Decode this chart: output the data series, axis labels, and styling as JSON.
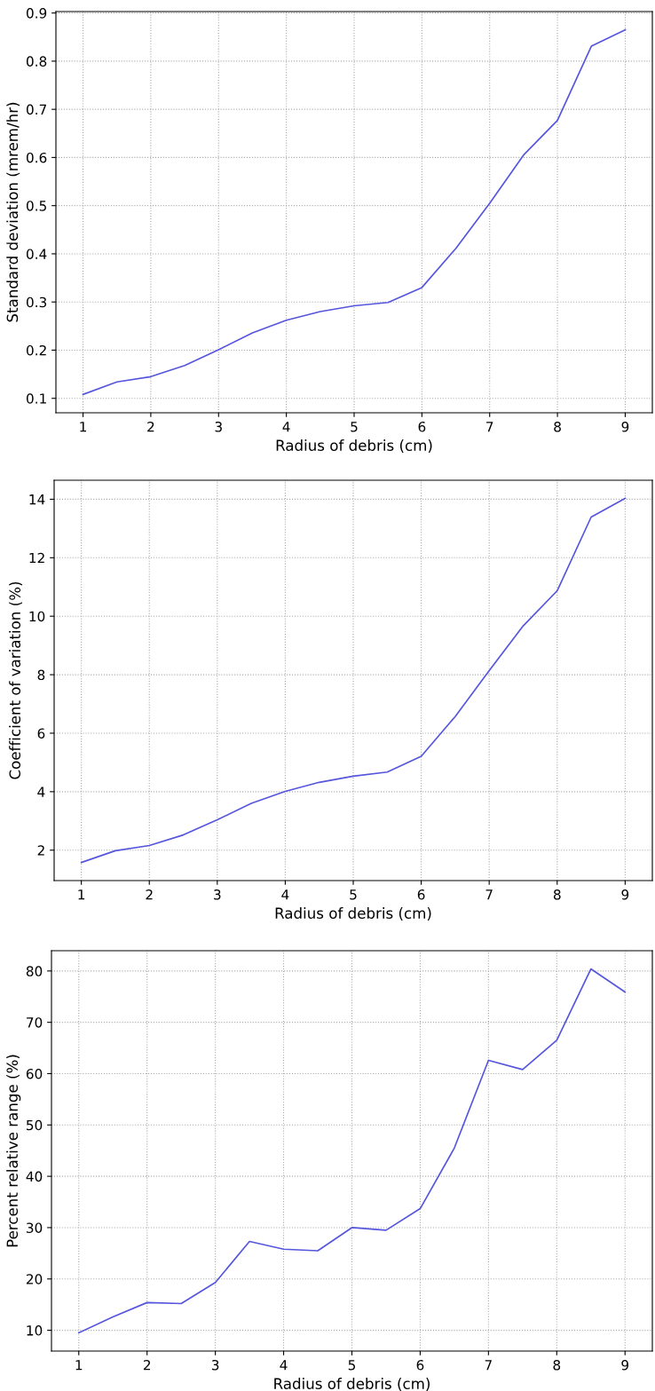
{
  "chart_data": [
    {
      "type": "line",
      "xlabel": "Radius of debris (cm)",
      "ylabel": "Standard deviation (mrem/hr)",
      "x": [
        1,
        1.5,
        2,
        2.5,
        3,
        3.5,
        4,
        4.5,
        5,
        5.5,
        6,
        6.5,
        7,
        7.5,
        8,
        8.5,
        9
      ],
      "series": [
        {
          "color": "#5555dd",
          "values": [
            0.108,
            0.134,
            0.145,
            0.168,
            0.201,
            0.236,
            0.262,
            0.28,
            0.292,
            0.299,
            0.33,
            0.411,
            0.505,
            0.605,
            0.677,
            0.831,
            0.865
          ]
        }
      ],
      "xlim": [
        0.6,
        9.4
      ],
      "xticks": [
        1,
        2,
        3,
        4,
        5,
        6,
        7,
        8,
        9
      ],
      "ylim": [
        0.07,
        0.903
      ],
      "yticks": [
        0.1,
        0.2,
        0.3,
        0.4,
        0.5,
        0.6,
        0.7,
        0.8,
        0.9
      ],
      "grid": true,
      "marker": "none",
      "line_style": "solid"
    },
    {
      "type": "line",
      "xlabel": "Radius of debris (cm)",
      "ylabel": "Coefficient of variation (%)",
      "x": [
        1,
        1.5,
        2,
        2.5,
        3,
        3.5,
        4,
        4.5,
        5,
        5.5,
        6,
        6.5,
        7,
        7.5,
        8,
        8.5,
        9
      ],
      "series": [
        {
          "color": "#5555dd",
          "values": [
            1.58,
            1.98,
            2.16,
            2.52,
            3.04,
            3.6,
            4.01,
            4.32,
            4.53,
            4.67,
            5.21,
            6.57,
            8.14,
            9.67,
            10.87,
            13.39,
            14.03
          ]
        }
      ],
      "xlim": [
        0.6,
        9.4
      ],
      "xticks": [
        1,
        2,
        3,
        4,
        5,
        6,
        7,
        8,
        9
      ],
      "ylim": [
        0.96,
        14.65
      ],
      "yticks": [
        2,
        4,
        6,
        8,
        10,
        12,
        14
      ],
      "grid": true,
      "marker": "none",
      "line_style": "solid"
    },
    {
      "type": "line",
      "xlabel": "Radius of debris (cm)",
      "ylabel": "Percent relative range (%)",
      "x": [
        1,
        1.5,
        2,
        2.5,
        3,
        3.5,
        4,
        4.5,
        5,
        5.5,
        6,
        6.5,
        7,
        7.5,
        8,
        8.5,
        9
      ],
      "series": [
        {
          "color": "#5555dd",
          "values": [
            9.5,
            12.6,
            15.4,
            15.2,
            19.3,
            27.3,
            25.8,
            25.5,
            30.0,
            29.5,
            33.7,
            45.5,
            62.6,
            60.8,
            66.5,
            80.4,
            75.9
          ]
        }
      ],
      "xlim": [
        0.6,
        9.4
      ],
      "xticks": [
        1,
        2,
        3,
        4,
        5,
        6,
        7,
        8,
        9
      ],
      "ylim": [
        5.95,
        83.95
      ],
      "yticks": [
        10,
        20,
        30,
        40,
        50,
        60,
        70,
        80
      ],
      "grid": true,
      "marker": "none",
      "line_style": "solid"
    }
  ]
}
